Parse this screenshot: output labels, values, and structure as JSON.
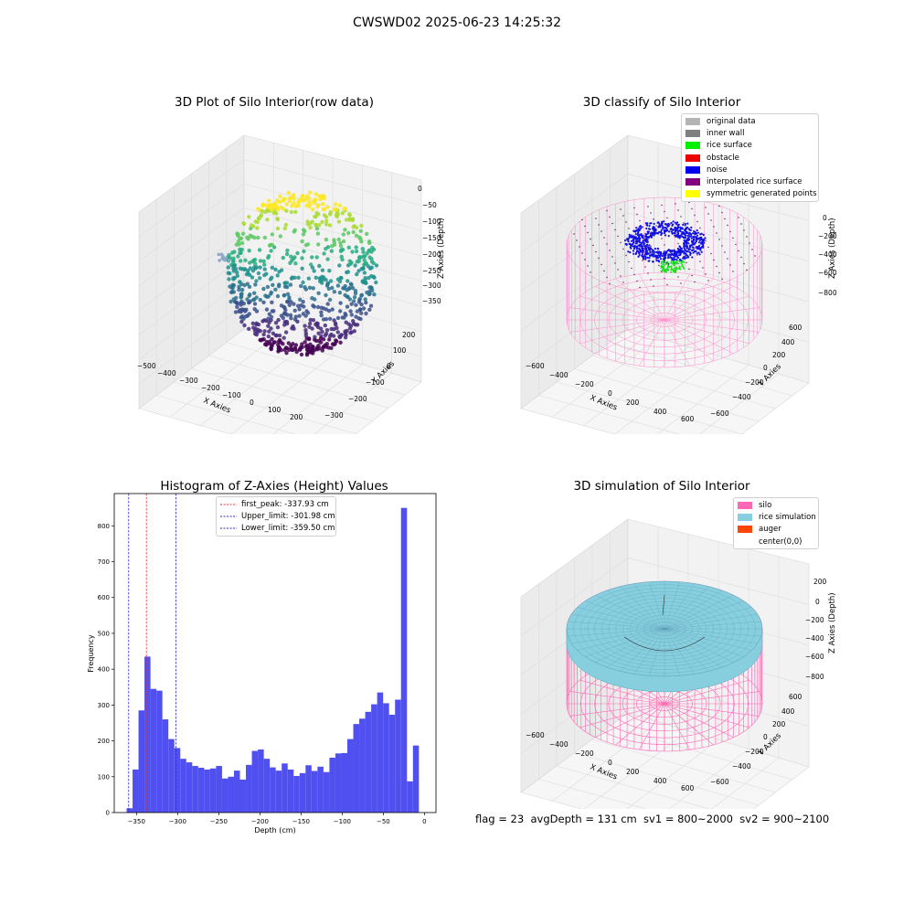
{
  "suptitle": "CWSWD02 2025-06-23 14:25:32",
  "footer": "flag = 23  avgDepth = 131 cm  sv1 = 800~2000  sv2 = 900~2100",
  "colors": {
    "histogram": "#5050f0",
    "first_peak": "#e03030",
    "limits": "#2b2bd6",
    "silo": "#ff69b4",
    "rice": "#87cede",
    "noise": "#1010e0",
    "rice_surface": "#22dd22"
  },
  "chart_data": [
    {
      "type": "scatter",
      "title": "3D Plot of Silo Interior(row data)",
      "xlabel": "X Axies",
      "ylabel": "Y Axies",
      "zlabel": "Z Axies (Depth)",
      "xticks": [
        "−500",
        "−400",
        "−300",
        "−200",
        "−100",
        "0",
        "100",
        "200"
      ],
      "yticks": [
        "−300",
        "−200",
        "−100",
        "0",
        "100",
        "200"
      ],
      "zticks": [
        "0",
        "−50",
        "−100",
        "−150",
        "−200",
        "−250",
        "−300",
        "−350"
      ],
      "xlim": [
        -520,
        240
      ],
      "ylim": [
        -300,
        240
      ],
      "zlim": [
        -375,
        10
      ],
      "colormap": "viridis"
    },
    {
      "type": "scatter",
      "title": "3D classify of Silo Interior",
      "xlabel": "X Axies",
      "ylabel": "Y Axies",
      "zlabel": "Z Axies (Depth)",
      "xticks": [
        "−600",
        "−400",
        "−200",
        "0",
        "200",
        "400",
        "600"
      ],
      "yticks": [
        "−600",
        "−400",
        "−200",
        "0",
        "200",
        "400",
        "600"
      ],
      "zticks": [
        "0",
        "−200",
        "−400",
        "−600",
        "−800"
      ],
      "legend": [
        {
          "label": "original data",
          "color": "#b4b4b4"
        },
        {
          "label": "inner wall",
          "color": "#808080"
        },
        {
          "label": "rice surface",
          "color": "#00ee00"
        },
        {
          "label": "obstacle",
          "color": "#ee0000"
        },
        {
          "label": "noise",
          "color": "#0000ee"
        },
        {
          "label": "interpolated rice surface",
          "color": "#800080"
        },
        {
          "label": "symmetric generated points",
          "color": "#ffff00"
        }
      ]
    },
    {
      "type": "bar",
      "title": "Histogram of Z-Axies (Height) Values",
      "xlabel": "Depth (cm)",
      "ylabel": "Frequency",
      "xlim": [
        -377,
        14
      ],
      "ylim": [
        0,
        890
      ],
      "xticks": [
        -350,
        -300,
        -250,
        -200,
        -150,
        -100,
        -50,
        0
      ],
      "yticks": [
        0,
        100,
        200,
        300,
        400,
        500,
        600,
        700,
        800
      ],
      "bin_start": -362,
      "bin_width": 7.25,
      "values": [
        12,
        120,
        285,
        435,
        345,
        340,
        260,
        205,
        180,
        150,
        140,
        130,
        125,
        120,
        123,
        130,
        95,
        100,
        117,
        92,
        133,
        172,
        176,
        150,
        126,
        117,
        137,
        120,
        102,
        110,
        132,
        116,
        128,
        113,
        153,
        165,
        166,
        205,
        247,
        262,
        281,
        302,
        335,
        305,
        273,
        315,
        850,
        87,
        187
      ],
      "vlines": [
        {
          "label": "first_peak: -337.93 cm",
          "x": -337.93,
          "color": "#e03030"
        },
        {
          "label": "Upper_limit: -301.98 cm",
          "x": -301.98,
          "color": "#2b2bd6"
        },
        {
          "label": "Lower_limit: -359.50 cm",
          "x": -359.5,
          "color": "#2b2bd6"
        }
      ]
    },
    {
      "type": "surface",
      "title": "3D simulation of Silo Interior",
      "xlabel": "X Axies",
      "ylabel": "Y Axies",
      "zlabel": "Z Axies (Depth)",
      "xticks": [
        "−600",
        "−400",
        "−200",
        "0",
        "200",
        "400",
        "600"
      ],
      "yticks": [
        "−600",
        "−400",
        "−200",
        "0",
        "200",
        "400",
        "600"
      ],
      "zticks": [
        "200",
        "0",
        "−200",
        "−400",
        "−600",
        "−800"
      ],
      "legend": [
        {
          "label": "silo",
          "color": "#ff69b4"
        },
        {
          "label": "rice simulation",
          "color": "#87cede"
        },
        {
          "label": "auger",
          "color": "#ff4500"
        },
        {
          "label": "center(0,0)",
          "color": ""
        }
      ]
    }
  ]
}
